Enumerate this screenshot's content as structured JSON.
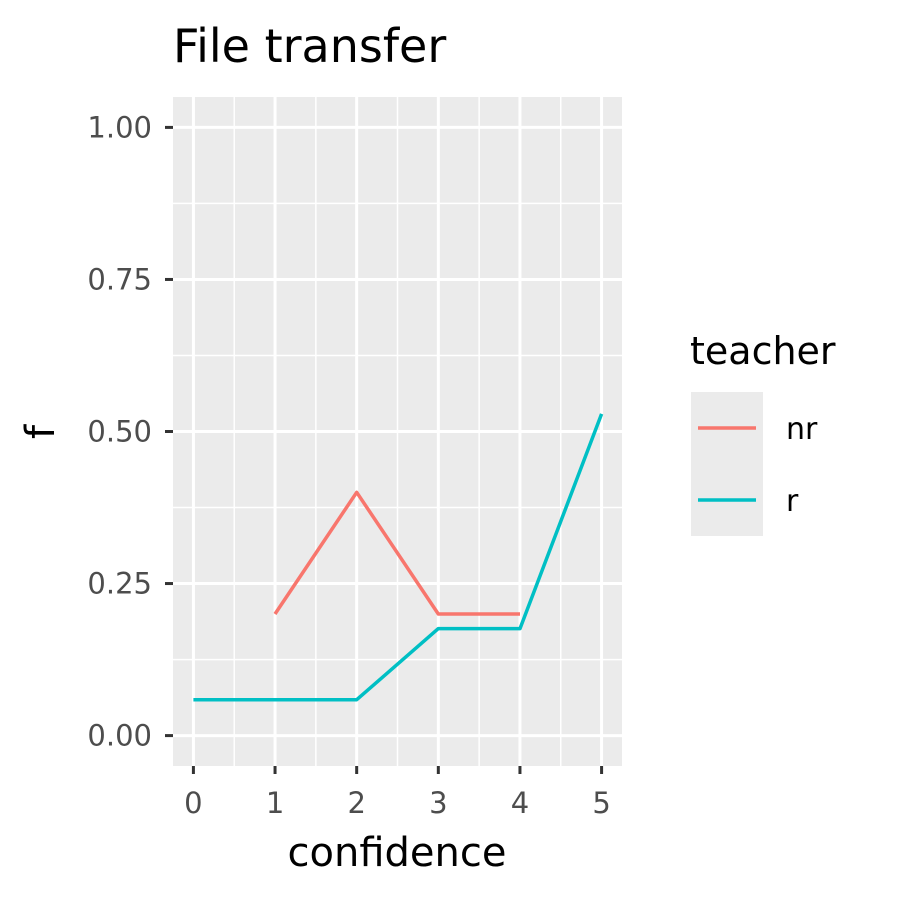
{
  "chart_data": {
    "type": "line",
    "title": "File transfer",
    "xlabel": "confidence",
    "ylabel": "f",
    "x_ticks": [
      "0",
      "1",
      "2",
      "3",
      "4",
      "5"
    ],
    "y_ticks": [
      "0.00",
      "0.25",
      "0.50",
      "0.75",
      "1.00"
    ],
    "xlim": [
      -0.25,
      5.25
    ],
    "ylim": [
      -0.05,
      1.05
    ],
    "grid": true,
    "legend": {
      "title": "teacher",
      "placement": "right",
      "entries": [
        {
          "label": "nr",
          "color": "#F8766D"
        },
        {
          "label": "r",
          "color": "#00BFC4"
        }
      ]
    },
    "series": [
      {
        "name": "nr",
        "color": "#F8766D",
        "x": [
          1,
          2,
          3,
          4
        ],
        "y": [
          0.2,
          0.4,
          0.2,
          0.2
        ]
      },
      {
        "name": "r",
        "color": "#00BFC4",
        "x": [
          0,
          1,
          2,
          3,
          4,
          5
        ],
        "y": [
          0.059,
          0.059,
          0.059,
          0.176,
          0.176,
          0.529
        ]
      }
    ]
  }
}
